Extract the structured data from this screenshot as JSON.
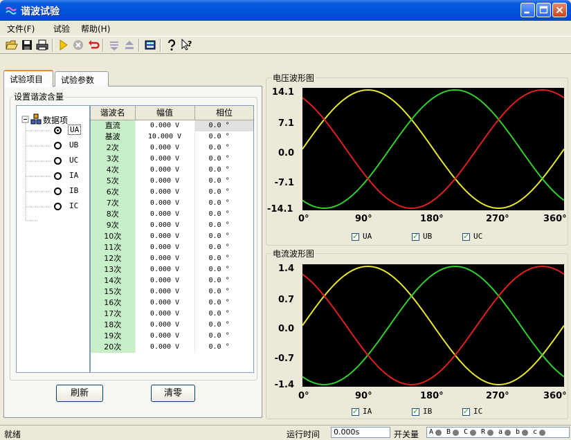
{
  "window": {
    "title": "谐波试验",
    "accent": "#0a5ae0"
  },
  "menu": [
    {
      "label": "文件(F)"
    },
    {
      "label": "试验"
    },
    {
      "label": "帮助(H)"
    }
  ],
  "toolbar": {
    "icons": [
      "open-icon",
      "save-icon",
      "print-icon",
      "run-icon",
      "stop-icon",
      "reset-icon",
      "down-icon",
      "up-icon",
      "calculator-icon",
      "help-icon",
      "context-help-icon"
    ]
  },
  "tabs": [
    {
      "label": "试验项目",
      "active": true
    },
    {
      "label": "试验参数",
      "active": false
    }
  ],
  "group_title": "设置谐波含量",
  "tree": {
    "root": "数据项",
    "items": [
      {
        "label": "UA",
        "selected": true
      },
      {
        "label": "UB",
        "selected": false
      },
      {
        "label": "UC",
        "selected": false
      },
      {
        "label": "IA",
        "selected": false
      },
      {
        "label": "IB",
        "selected": false
      },
      {
        "label": "IC",
        "selected": false
      }
    ]
  },
  "harmonic_table": {
    "columns": [
      "谐波名",
      "幅值",
      "相位"
    ],
    "rows": [
      {
        "name": "直流",
        "amp": "0.000 V",
        "phase": "0.0 °"
      },
      {
        "name": "基波",
        "amp": "10.000 V",
        "phase": "0.0 °"
      },
      {
        "name": "2次",
        "amp": "0.000 V",
        "phase": "0.0 °"
      },
      {
        "name": "3次",
        "amp": "0.000 V",
        "phase": "0.0 °"
      },
      {
        "name": "4次",
        "amp": "0.000 V",
        "phase": "0.0 °"
      },
      {
        "name": "5次",
        "amp": "0.000 V",
        "phase": "0.0 °"
      },
      {
        "name": "6次",
        "amp": "0.000 V",
        "phase": "0.0 °"
      },
      {
        "name": "7次",
        "amp": "0.000 V",
        "phase": "0.0 °"
      },
      {
        "name": "8次",
        "amp": "0.000 V",
        "phase": "0.0 °"
      },
      {
        "name": "9次",
        "amp": "0.000 V",
        "phase": "0.0 °"
      },
      {
        "name": "10次",
        "amp": "0.000 V",
        "phase": "0.0 °"
      },
      {
        "name": "11次",
        "amp": "0.000 V",
        "phase": "0.0 °"
      },
      {
        "name": "12次",
        "amp": "0.000 V",
        "phase": "0.0 °"
      },
      {
        "name": "13次",
        "amp": "0.000 V",
        "phase": "0.0 °"
      },
      {
        "name": "14次",
        "amp": "0.000 V",
        "phase": "0.0 °"
      },
      {
        "name": "15次",
        "amp": "0.000 V",
        "phase": "0.0 °"
      },
      {
        "name": "16次",
        "amp": "0.000 V",
        "phase": "0.0 °"
      },
      {
        "name": "17次",
        "amp": "0.000 V",
        "phase": "0.0 °"
      },
      {
        "name": "18次",
        "amp": "0.000 V",
        "phase": "0.0 °"
      },
      {
        "name": "19次",
        "amp": "0.000 V",
        "phase": "0.0 °"
      },
      {
        "name": "20次",
        "amp": "0.000 V",
        "phase": "0.0 °"
      }
    ]
  },
  "buttons": {
    "refresh": "刷新",
    "clear": "清零"
  },
  "chart_data": [
    {
      "type": "line",
      "title": "电压波形图",
      "x_ticks": [
        "0°",
        "90°",
        "180°",
        "270°",
        "360°"
      ],
      "y_ticks": [
        "14.1",
        "7.1",
        "0.0",
        "-7.1",
        "-14.1"
      ],
      "xlim": [
        0,
        360
      ],
      "ylim": [
        -14.1,
        14.1
      ],
      "series": [
        {
          "name": "UA",
          "color": "#e8e830",
          "amplitude": 14.1,
          "phase_deg": 0
        },
        {
          "name": "UB",
          "color": "#30d030",
          "amplitude": 14.1,
          "phase_deg": -120
        },
        {
          "name": "UC",
          "color": "#e02020",
          "amplitude": 14.1,
          "phase_deg": 120
        }
      ]
    },
    {
      "type": "line",
      "title": "电流波形图",
      "x_ticks": [
        "0°",
        "90°",
        "180°",
        "270°",
        "360°"
      ],
      "y_ticks": [
        "1.4",
        "0.7",
        "0.0",
        "-0.7",
        "-1.4"
      ],
      "xlim": [
        0,
        360
      ],
      "ylim": [
        -1.4,
        1.4
      ],
      "series": [
        {
          "name": "IA",
          "color": "#e8e830",
          "amplitude": 1.4,
          "phase_deg": 0
        },
        {
          "name": "IB",
          "color": "#30d030",
          "amplitude": 1.4,
          "phase_deg": -120
        },
        {
          "name": "IC",
          "color": "#e02020",
          "amplitude": 1.4,
          "phase_deg": 120
        }
      ]
    }
  ],
  "status": {
    "ready": "就绪",
    "runtime_label": "运行时间",
    "runtime_value": "0.000s",
    "switch_label": "开关量",
    "switches": [
      "A",
      "B",
      "C",
      "R",
      "a",
      "b",
      "c"
    ]
  }
}
